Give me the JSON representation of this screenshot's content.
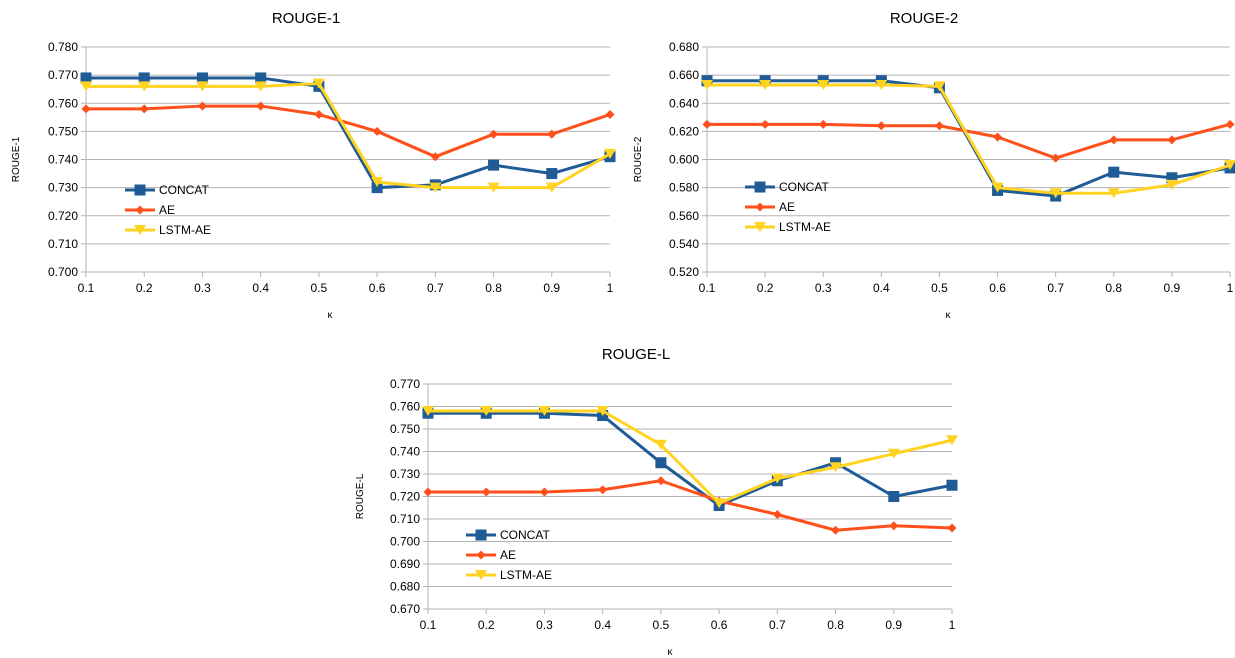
{
  "chart_data": [
    {
      "type": "line",
      "title": "ROUGE-1",
      "xlabel": "κ",
      "ylabel": "ROUGE-1",
      "ylim": [
        0.7,
        0.78
      ],
      "y_ticks": [
        "0.700",
        "0.710",
        "0.720",
        "0.730",
        "0.740",
        "0.750",
        "0.760",
        "0.770",
        "0.780"
      ],
      "categories": [
        "0.1",
        "0.2",
        "0.3",
        "0.4",
        "0.5",
        "0.6",
        "0.7",
        "0.8",
        "0.9",
        "1"
      ],
      "grid": true,
      "legend": "left-middle",
      "series": [
        {
          "name": "CONCAT",
          "color": "#1f5b96",
          "marker": "square",
          "values": [
            0.769,
            0.769,
            0.769,
            0.769,
            0.766,
            0.73,
            0.731,
            0.738,
            0.735,
            0.741
          ]
        },
        {
          "name": "AE",
          "color": "#ff4f1a",
          "marker": "diamond",
          "values": [
            0.758,
            0.758,
            0.759,
            0.759,
            0.756,
            0.75,
            0.741,
            0.749,
            0.749,
            0.756
          ]
        },
        {
          "name": "LSTM-AE",
          "color": "#ffd320",
          "marker": "triangle-down",
          "values": [
            0.766,
            0.766,
            0.766,
            0.766,
            0.767,
            0.732,
            0.73,
            0.73,
            0.73,
            0.742
          ]
        }
      ]
    },
    {
      "type": "line",
      "title": "ROUGE-2",
      "xlabel": "κ",
      "ylabel": "ROUGE-2",
      "ylim": [
        0.52,
        0.68
      ],
      "y_ticks": [
        "0.520",
        "0.540",
        "0.560",
        "0.580",
        "0.600",
        "0.620",
        "0.640",
        "0.660",
        "0.680"
      ],
      "categories": [
        "0.1",
        "0.2",
        "0.3",
        "0.4",
        "0.5",
        "0.6",
        "0.7",
        "0.8",
        "0.9",
        "1"
      ],
      "grid": true,
      "legend": "left-middle",
      "series": [
        {
          "name": "CONCAT",
          "color": "#1f5b96",
          "marker": "square",
          "values": [
            0.656,
            0.656,
            0.656,
            0.656,
            0.651,
            0.578,
            0.574,
            0.591,
            0.587,
            0.594
          ]
        },
        {
          "name": "AE",
          "color": "#ff4f1a",
          "marker": "diamond",
          "values": [
            0.625,
            0.625,
            0.625,
            0.624,
            0.624,
            0.616,
            0.601,
            0.614,
            0.614,
            0.625
          ]
        },
        {
          "name": "LSTM-AE",
          "color": "#ffd320",
          "marker": "triangle-down",
          "values": [
            0.653,
            0.653,
            0.653,
            0.653,
            0.652,
            0.58,
            0.576,
            0.576,
            0.582,
            0.596
          ]
        }
      ]
    },
    {
      "type": "line",
      "title": "ROUGE-L",
      "xlabel": "κ",
      "ylabel": "ROUGE-L",
      "ylim": [
        0.67,
        0.77
      ],
      "y_ticks": [
        "0.670",
        "0.680",
        "0.690",
        "0.700",
        "0.710",
        "0.720",
        "0.730",
        "0.740",
        "0.750",
        "0.760",
        "0.770"
      ],
      "categories": [
        "0.1",
        "0.2",
        "0.3",
        "0.4",
        "0.5",
        "0.6",
        "0.7",
        "0.8",
        "0.9",
        "1"
      ],
      "grid": true,
      "legend": "left-bottom",
      "series": [
        {
          "name": "CONCAT",
          "color": "#1f5b96",
          "marker": "square",
          "values": [
            0.757,
            0.757,
            0.757,
            0.756,
            0.735,
            0.716,
            0.727,
            0.735,
            0.72,
            0.725
          ]
        },
        {
          "name": "AE",
          "color": "#ff4f1a",
          "marker": "diamond",
          "values": [
            0.722,
            0.722,
            0.722,
            0.723,
            0.727,
            0.718,
            0.712,
            0.705,
            0.707,
            0.706
          ]
        },
        {
          "name": "LSTM-AE",
          "color": "#ffd320",
          "marker": "triangle-down",
          "values": [
            0.758,
            0.758,
            0.758,
            0.758,
            0.743,
            0.717,
            0.728,
            0.733,
            0.739,
            0.745
          ]
        }
      ]
    }
  ]
}
